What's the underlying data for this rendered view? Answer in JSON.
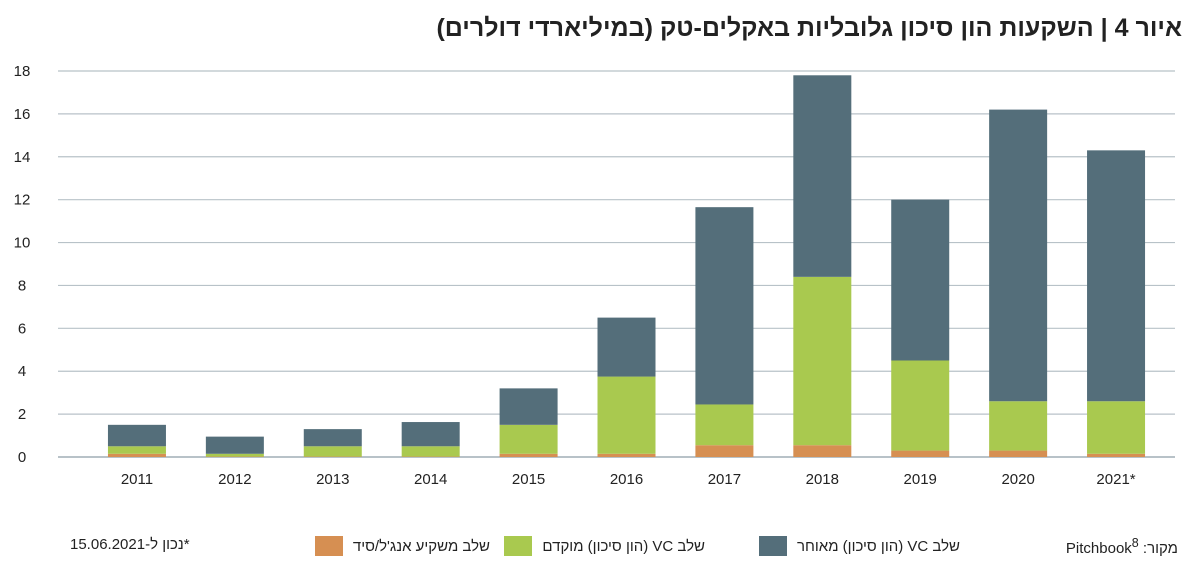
{
  "title": "איור 4 | השקעות הון סיכון גלובליות באקלים-טק (במיליארדי דולרים)",
  "chart_data": {
    "type": "bar",
    "stacked": true,
    "title": "איור 4 | השקעות הון סיכון גלובליות באקלים-טק (במיליארדי דולרים)",
    "categories": [
      "2011",
      "2012",
      "2013",
      "2014",
      "2015",
      "2016",
      "2017",
      "2018",
      "2019",
      "2020",
      "2021*"
    ],
    "ylim": [
      0,
      18
    ],
    "yticks": [
      0,
      2,
      4,
      6,
      8,
      10,
      12,
      14,
      16,
      18
    ],
    "grid": true,
    "legend_position": "bottom",
    "series": [
      {
        "name": "שלב משקיע אנג'ל/סיד",
        "color": "#D68F52",
        "values": [
          0.15,
          0.02,
          0.02,
          0.02,
          0.15,
          0.15,
          0.55,
          0.55,
          0.3,
          0.3,
          0.15
        ]
      },
      {
        "name": "שלב VC (הון סיכון) מוקדם",
        "color": "#A9C94F",
        "values": [
          0.35,
          0.13,
          0.48,
          0.48,
          1.35,
          3.6,
          1.9,
          7.85,
          4.2,
          2.3,
          2.45
        ]
      },
      {
        "name": "שלב VC (הון סיכון) מאוחר",
        "color": "#546E7A",
        "values": [
          1.0,
          0.8,
          0.8,
          1.13,
          1.7,
          2.75,
          9.2,
          9.4,
          7.5,
          13.6,
          11.7
        ]
      }
    ]
  },
  "footer": {
    "source": "מקור: Pitchbook",
    "source_sup": "8",
    "note": "*נכון ל-15.06.2021"
  }
}
